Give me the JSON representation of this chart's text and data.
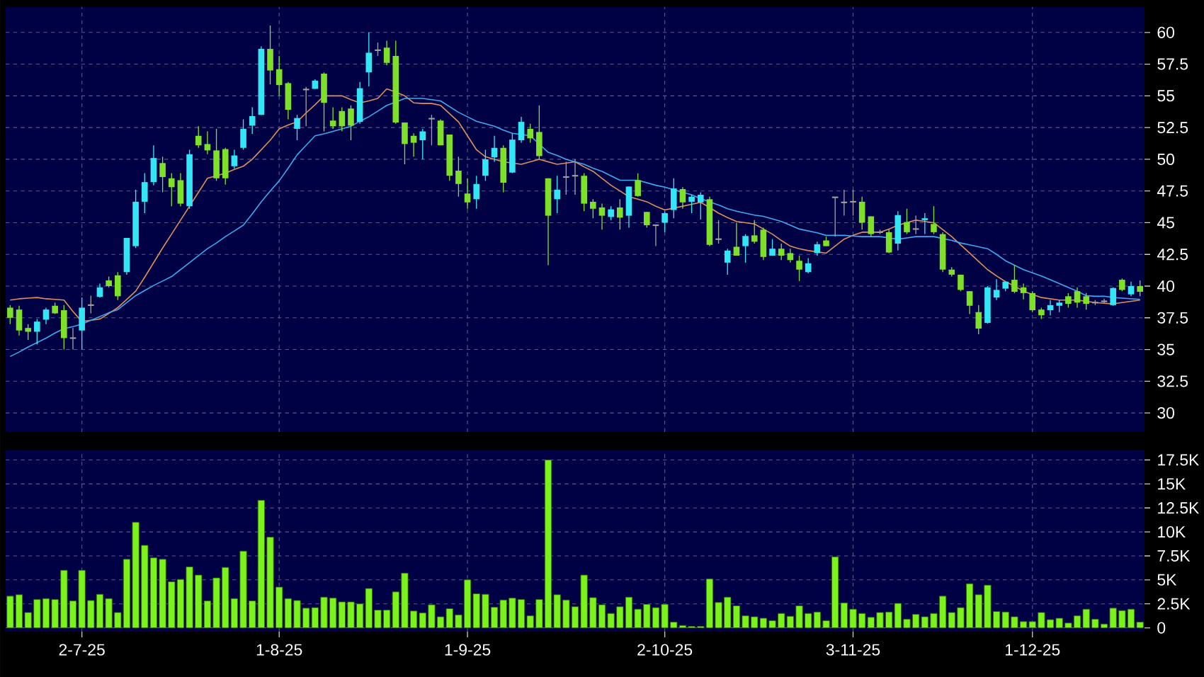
{
  "chart_data": [
    {
      "type": "candlestick",
      "categories": [
        null,
        null,
        null,
        null,
        null,
        null,
        null,
        null,
        null,
        null,
        null,
        null,
        null,
        null,
        null,
        null,
        null,
        null,
        null,
        null,
        null,
        null,
        null,
        null,
        null,
        null,
        null,
        null,
        null,
        null,
        null,
        null,
        null,
        null,
        null,
        null,
        null,
        null,
        null,
        null,
        null,
        null,
        null,
        null,
        null,
        null,
        null,
        null,
        null,
        null,
        null,
        null,
        null,
        null,
        null,
        null,
        null,
        null,
        null,
        null,
        null,
        null,
        null,
        null,
        null,
        null,
        null,
        null,
        null,
        null,
        null,
        null,
        null,
        null,
        null,
        null,
        null,
        null,
        null,
        null,
        null,
        null,
        null,
        null,
        null,
        null,
        null,
        null,
        null,
        null,
        null,
        null,
        null,
        null,
        null,
        null,
        null,
        null,
        null,
        null,
        null,
        null,
        null,
        null,
        null,
        null,
        null,
        null,
        null,
        null,
        null,
        null,
        null,
        null,
        null,
        null,
        null,
        null,
        null,
        null,
        null,
        null,
        null,
        null,
        null,
        null,
        null
      ],
      "ohlc": [
        [
          38.3,
          38.5,
          37.0,
          37.5
        ],
        [
          38.15,
          38.45,
          36.1,
          36.5
        ],
        [
          36.7,
          37.0,
          35.75,
          36.4
        ],
        [
          36.4,
          37.4,
          35.4,
          37.2
        ],
        [
          37.35,
          38.3,
          37.0,
          38.15
        ],
        [
          38.45,
          38.7,
          37.8,
          37.85
        ],
        [
          38.1,
          38.5,
          35.0,
          35.9
        ],
        [
          35.9,
          36.7,
          35.0,
          35.9
        ],
        [
          36.5,
          39.1,
          35.0,
          38.3
        ],
        [
          38.5,
          39.25,
          37.85,
          38.5
        ],
        [
          39.15,
          40.2,
          39.1,
          39.9
        ],
        [
          40.45,
          40.75,
          39.9,
          40.0
        ],
        [
          40.85,
          41.1,
          38.9,
          39.2
        ],
        [
          41.1,
          43.8,
          40.9,
          43.8
        ],
        [
          43.15,
          47.6,
          43.0,
          46.65
        ],
        [
          46.65,
          48.9,
          45.75,
          48.2
        ],
        [
          48.2,
          51.1,
          47.95,
          50.1
        ],
        [
          49.7,
          50.2,
          47.4,
          48.6
        ],
        [
          48.5,
          48.9,
          46.3,
          47.8
        ],
        [
          48.35,
          48.9,
          46.3,
          46.5
        ],
        [
          46.3,
          50.75,
          46.1,
          50.4
        ],
        [
          51.85,
          52.6,
          50.9,
          51.1
        ],
        [
          51.2,
          52.2,
          50.4,
          50.7
        ],
        [
          50.7,
          52.4,
          48.3,
          48.5
        ],
        [
          50.8,
          50.9,
          48.0,
          48.5
        ],
        [
          49.45,
          50.75,
          49.25,
          50.3
        ],
        [
          50.9,
          53.15,
          50.75,
          52.4
        ],
        [
          52.65,
          54.1,
          52.0,
          53.4
        ],
        [
          53.5,
          58.9,
          53.5,
          58.7
        ],
        [
          58.7,
          60.55,
          55.9,
          57.0
        ],
        [
          57.1,
          58.15,
          55.0,
          55.85
        ],
        [
          56.0,
          56.1,
          53.15,
          53.9
        ],
        [
          52.4,
          53.5,
          51.5,
          53.25
        ],
        [
          55.5,
          55.7,
          52.6,
          55.5
        ],
        [
          55.55,
          56.3,
          55.55,
          56.2
        ],
        [
          56.75,
          56.85,
          52.2,
          54.45
        ],
        [
          53.05,
          54.1,
          52.4,
          52.6
        ],
        [
          53.8,
          54.1,
          52.2,
          52.6
        ],
        [
          54.0,
          54.25,
          51.5,
          52.65
        ],
        [
          52.95,
          56.1,
          52.8,
          55.6
        ],
        [
          56.85,
          60.0,
          55.75,
          58.4
        ],
        [
          58.6,
          59.2,
          58.15,
          58.6
        ],
        [
          58.8,
          59.35,
          57.4,
          57.6
        ],
        [
          58.15,
          59.35,
          52.8,
          52.9
        ],
        [
          52.9,
          52.9,
          49.6,
          51.2
        ],
        [
          51.85,
          52.05,
          50.2,
          51.3
        ],
        [
          51.5,
          52.4,
          50.0,
          52.2
        ],
        [
          53.2,
          53.5,
          51.1,
          53.2
        ],
        [
          53.05,
          53.15,
          51.1,
          51.1
        ],
        [
          51.95,
          51.95,
          48.3,
          48.7
        ],
        [
          49.1,
          50.2,
          47.05,
          48.05
        ],
        [
          47.3,
          48.5,
          46.1,
          46.6
        ],
        [
          46.85,
          48.7,
          46.1,
          48.05
        ],
        [
          48.7,
          50.75,
          48.3,
          50.0
        ],
        [
          50.15,
          51.85,
          49.8,
          50.9
        ],
        [
          50.9,
          51.1,
          47.4,
          48.15
        ],
        [
          48.95,
          52.05,
          48.9,
          51.55
        ],
        [
          51.5,
          53.35,
          51.3,
          52.95
        ],
        [
          52.4,
          52.8,
          51.3,
          51.65
        ],
        [
          52.15,
          54.25,
          50.0,
          50.25
        ],
        [
          48.5,
          48.5,
          41.65,
          45.55
        ],
        [
          46.85,
          48.7,
          45.75,
          47.6
        ],
        [
          48.6,
          49.8,
          47.2,
          48.6
        ],
        [
          48.7,
          50.0,
          47.2,
          48.7
        ],
        [
          48.7,
          48.9,
          45.9,
          46.5
        ],
        [
          46.65,
          46.85,
          45.35,
          46.1
        ],
        [
          46.2,
          46.5,
          44.45,
          45.55
        ],
        [
          45.45,
          46.3,
          45.2,
          46.05
        ],
        [
          46.2,
          46.85,
          44.45,
          45.4
        ],
        [
          45.55,
          47.85,
          44.6,
          47.85
        ],
        [
          48.35,
          48.9,
          47.05,
          47.1
        ],
        [
          45.85,
          45.85,
          44.6,
          44.8
        ],
        [
          44.8,
          44.8,
          43.15,
          44.8
        ],
        [
          45.0,
          45.9,
          44.25,
          45.75
        ],
        [
          46.0,
          48.5,
          45.35,
          47.7
        ],
        [
          47.65,
          47.8,
          46.1,
          46.6
        ],
        [
          46.65,
          47.2,
          45.75,
          47.05
        ],
        [
          46.6,
          47.4,
          45.25,
          47.2
        ],
        [
          46.85,
          47.05,
          43.15,
          43.25
        ],
        [
          43.7,
          45.2,
          43.35,
          43.7
        ],
        [
          41.85,
          42.95,
          40.9,
          42.8
        ],
        [
          43.1,
          45.0,
          42.4,
          42.4
        ],
        [
          43.15,
          44.1,
          41.85,
          43.95
        ],
        [
          44.0,
          45.2,
          43.35,
          43.5
        ],
        [
          44.45,
          44.6,
          42.05,
          42.3
        ],
        [
          42.4,
          43.7,
          42.4,
          42.95
        ],
        [
          42.95,
          43.35,
          42.05,
          42.4
        ],
        [
          42.6,
          42.95,
          41.85,
          42.05
        ],
        [
          42.0,
          42.4,
          40.4,
          41.3
        ],
        [
          41.1,
          42.2,
          41.0,
          41.8
        ],
        [
          42.6,
          43.5,
          42.4,
          43.3
        ],
        [
          43.6,
          43.9,
          43.15,
          43.15
        ],
        [
          47.0,
          47.0,
          43.9,
          47.0
        ],
        [
          46.6,
          47.6,
          45.55,
          46.6
        ],
        [
          46.65,
          47.6,
          45.55,
          46.65
        ],
        [
          46.65,
          47.05,
          44.45,
          45.0
        ],
        [
          45.5,
          45.5,
          43.9,
          44.1
        ],
        [
          44.25,
          44.45,
          44.1,
          44.25
        ],
        [
          44.25,
          44.45,
          42.6,
          42.65
        ],
        [
          43.35,
          45.9,
          42.8,
          45.6
        ],
        [
          45.05,
          46.1,
          44.1,
          44.25
        ],
        [
          44.5,
          45.55,
          44.1,
          44.5
        ],
        [
          45.2,
          45.75,
          44.1,
          45.35
        ],
        [
          44.9,
          46.3,
          44.1,
          44.25
        ],
        [
          44.1,
          44.25,
          41.1,
          41.3
        ],
        [
          41.3,
          41.5,
          40.75,
          40.9
        ],
        [
          40.9,
          40.9,
          39.6,
          39.7
        ],
        [
          39.6,
          39.6,
          37.8,
          38.45
        ],
        [
          37.95,
          38.5,
          36.2,
          36.65
        ],
        [
          37.1,
          40.0,
          37.05,
          39.9
        ],
        [
          39.1,
          40.55,
          38.9,
          39.7
        ],
        [
          39.8,
          40.35,
          39.6,
          40.35
        ],
        [
          40.5,
          41.65,
          39.45,
          39.55
        ],
        [
          39.9,
          40.2,
          38.95,
          39.45
        ],
        [
          39.45,
          39.6,
          37.95,
          38.1
        ],
        [
          38.15,
          38.3,
          37.4,
          37.7
        ],
        [
          38.1,
          38.9,
          37.7,
          38.5
        ],
        [
          38.45,
          38.9,
          37.95,
          38.7
        ],
        [
          39.2,
          39.45,
          38.3,
          38.6
        ],
        [
          39.6,
          39.9,
          38.3,
          38.7
        ],
        [
          39.2,
          39.45,
          38.15,
          38.6
        ],
        [
          38.7,
          38.9,
          38.5,
          38.7
        ],
        [
          38.8,
          39.0,
          38.6,
          38.8
        ],
        [
          38.5,
          39.9,
          38.45,
          39.85
        ],
        [
          40.5,
          40.6,
          39.6,
          39.7
        ],
        [
          39.35,
          40.35,
          39.2,
          40.0
        ],
        [
          40.0,
          40.45,
          39.2,
          39.55
        ]
      ],
      "colors": [
        "#7fe02a",
        "#7fe02a",
        "#7fe02a",
        "#33e6f6",
        "#33e6f6",
        "#7fe02a",
        "#7fe02a",
        "#a0a0a0",
        "#33e6f6",
        "#a0a0a0",
        "#33e6f6",
        "#7fe02a",
        "#7fe02a",
        "#33e6f6",
        "#33e6f6",
        "#33e6f6",
        "#33e6f6",
        "#7fe02a",
        "#7fe02a",
        "#7fe02a",
        "#33e6f6",
        "#7fe02a",
        "#7fe02a",
        "#7fe02a",
        "#7fe02a",
        "#33e6f6",
        "#33e6f6",
        "#33e6f6",
        "#33e6f6",
        "#7fe02a",
        "#7fe02a",
        "#7fe02a",
        "#33e6f6",
        "#a0a0a0",
        "#33e6f6",
        "#7fe02a",
        "#7fe02a",
        "#7fe02a",
        "#7fe02a",
        "#33e6f6",
        "#33e6f6",
        "#a0a0a0",
        "#7fe02a",
        "#7fe02a",
        "#7fe02a",
        "#7fe02a",
        "#33e6f6",
        "#a0a0a0",
        "#7fe02a",
        "#7fe02a",
        "#7fe02a",
        "#7fe02a",
        "#33e6f6",
        "#33e6f6",
        "#33e6f6",
        "#7fe02a",
        "#33e6f6",
        "#33e6f6",
        "#7fe02a",
        "#7fe02a",
        "#7fe02a",
        "#33e6f6",
        "#a0a0a0",
        "#a0a0a0",
        "#7fe02a",
        "#7fe02a",
        "#7fe02a",
        "#33e6f6",
        "#7fe02a",
        "#33e6f6",
        "#7fe02a",
        "#7fe02a",
        "#a0a0a0",
        "#33e6f6",
        "#33e6f6",
        "#7fe02a",
        "#33e6f6",
        "#33e6f6",
        "#7fe02a",
        "#a0a0a0",
        "#33e6f6",
        "#7fe02a",
        "#33e6f6",
        "#7fe02a",
        "#7fe02a",
        "#33e6f6",
        "#7fe02a",
        "#7fe02a",
        "#7fe02a",
        "#33e6f6",
        "#33e6f6",
        "#7fe02a",
        "#a0a0a0",
        "#a0a0a0",
        "#a0a0a0",
        "#7fe02a",
        "#7fe02a",
        "#a0a0a0",
        "#7fe02a",
        "#33e6f6",
        "#7fe02a",
        "#a0a0a0",
        "#33e6f6",
        "#7fe02a",
        "#7fe02a",
        "#7fe02a",
        "#7fe02a",
        "#7fe02a",
        "#7fe02a",
        "#33e6f6",
        "#33e6f6",
        "#33e6f6",
        "#7fe02a",
        "#7fe02a",
        "#7fe02a",
        "#7fe02a",
        "#33e6f6",
        "#33e6f6",
        "#7fe02a",
        "#7fe02a",
        "#7fe02a",
        "#a0a0a0",
        "#a0a0a0",
        "#33e6f6",
        "#7fe02a",
        "#33e6f6",
        "#7fe02a"
      ],
      "series": [
        {
          "type": "line",
          "color": "#e0905a",
          "values": [
            38.9,
            39.0,
            39.05,
            39.1,
            39.0,
            38.95,
            38.9,
            38.0,
            37.2,
            37.3,
            37.4,
            37.85,
            38.3,
            38.95,
            39.6,
            40.7,
            41.85,
            43.0,
            44.1,
            45.2,
            46.3,
            47.4,
            48.5,
            48.7,
            48.9,
            49.2,
            49.45,
            50.0,
            50.75,
            51.5,
            52.4,
            52.7,
            52.95,
            53.65,
            54.3,
            55.0,
            55.0,
            55.0,
            54.7,
            54.45,
            54.6,
            54.8,
            55.55,
            55.3,
            55.0,
            54.45,
            54.4,
            54.4,
            54.25,
            53.6,
            52.95,
            51.85,
            50.75,
            50.2,
            50.0,
            49.8,
            49.7,
            49.6,
            49.8,
            50.0,
            49.8,
            49.6,
            49.7,
            49.8,
            49.4,
            49.05,
            48.5,
            47.95,
            47.5,
            47.05,
            46.85,
            46.65,
            46.3,
            46.0,
            46.15,
            46.3,
            46.45,
            46.6,
            46.2,
            45.75,
            45.4,
            45.1,
            45.0,
            44.9,
            44.5,
            44.1,
            43.6,
            43.15,
            42.95,
            42.8,
            42.7,
            42.6,
            43.15,
            43.7,
            44.0,
            44.25,
            44.25,
            44.25,
            44.5,
            44.8,
            45.0,
            45.2,
            45.1,
            45.0,
            44.45,
            43.9,
            43.25,
            42.6,
            41.95,
            41.3,
            40.8,
            40.35,
            40.0,
            39.6,
            39.35,
            39.1,
            39.0,
            38.9,
            38.9,
            38.9,
            38.8,
            38.7,
            38.65,
            38.6,
            38.7,
            38.8,
            38.9
          ]
        },
        {
          "type": "line",
          "color": "#40a8f0",
          "values": [
            34.45,
            34.8,
            35.2,
            35.55,
            35.9,
            36.3,
            36.65,
            36.8,
            37.0,
            37.3,
            37.6,
            37.9,
            38.15,
            38.7,
            39.25,
            39.65,
            40.05,
            40.4,
            40.75,
            41.3,
            41.85,
            42.4,
            42.95,
            43.4,
            43.9,
            44.35,
            44.8,
            45.7,
            46.65,
            47.5,
            48.3,
            49.3,
            50.35,
            51.1,
            51.85,
            52.0,
            52.2,
            52.4,
            52.6,
            53.0,
            53.35,
            53.8,
            54.25,
            54.5,
            54.8,
            54.8,
            54.8,
            54.7,
            54.6,
            54.15,
            53.7,
            53.35,
            53.0,
            52.8,
            52.6,
            52.3,
            52.05,
            51.95,
            51.85,
            51.2,
            50.55,
            50.3,
            50.0,
            49.8,
            49.6,
            49.3,
            49.05,
            48.7,
            48.35,
            48.35,
            48.35,
            48.15,
            47.95,
            47.8,
            47.6,
            47.4,
            47.2,
            46.9,
            46.65,
            46.4,
            46.1,
            45.9,
            45.75,
            45.6,
            45.5,
            45.3,
            45.1,
            44.8,
            44.5,
            44.35,
            44.2,
            44.0,
            44.0,
            44.0,
            43.95,
            43.9,
            43.9,
            43.9,
            43.8,
            43.7,
            43.8,
            43.9,
            43.9,
            43.9,
            43.75,
            43.6,
            43.4,
            43.25,
            43.1,
            42.95,
            42.5,
            42.0,
            41.65,
            41.3,
            41.05,
            40.8,
            40.5,
            40.2,
            39.9,
            39.6,
            39.25,
            39.2,
            39.2,
            39.1,
            39.05,
            39.0,
            38.95
          ]
        }
      ],
      "ylim": [
        28.5,
        62
      ],
      "yticks": [
        30,
        32.5,
        35,
        37.5,
        40,
        42.5,
        45,
        47.5,
        50,
        52.5,
        55,
        57.5,
        60
      ],
      "grid": true,
      "tick_labels": "y"
    },
    {
      "type": "bar",
      "categories": [
        null,
        null,
        null,
        null,
        null,
        null,
        null,
        null,
        "2-7-25",
        null,
        null,
        null,
        null,
        null,
        null,
        null,
        null,
        null,
        null,
        null,
        null,
        null,
        null,
        null,
        null,
        null,
        null,
        null,
        null,
        null,
        "1-8-25",
        null,
        null,
        null,
        null,
        null,
        null,
        null,
        null,
        null,
        null,
        null,
        null,
        null,
        null,
        null,
        null,
        null,
        null,
        null,
        null,
        "1-9-25",
        null,
        null,
        null,
        null,
        null,
        null,
        null,
        null,
        null,
        null,
        null,
        null,
        null,
        null,
        null,
        null,
        null,
        null,
        null,
        null,
        null,
        "2-10-25",
        null,
        null,
        null,
        null,
        null,
        null,
        null,
        null,
        null,
        null,
        null,
        null,
        null,
        null,
        null,
        null,
        null,
        null,
        null,
        null,
        "3-11-25",
        null,
        null,
        null,
        null,
        null,
        null,
        null,
        null,
        null,
        null,
        null,
        null,
        null,
        null,
        null,
        null,
        null,
        null,
        null,
        "1-12-25",
        null,
        null,
        null,
        null,
        null,
        null,
        null,
        null,
        null,
        null,
        null,
        null
      ],
      "values": [
        3300,
        3450,
        1600,
        2950,
        3050,
        2950,
        6000,
        2800,
        6000,
        2850,
        3500,
        3050,
        1600,
        7150,
        11000,
        8600,
        7300,
        7150,
        4800,
        5050,
        6350,
        5500,
        2800,
        5200,
        6300,
        3050,
        8000,
        2800,
        13300,
        9450,
        4250,
        3050,
        2850,
        2050,
        2100,
        3200,
        3100,
        2700,
        2700,
        2500,
        4100,
        1850,
        1850,
        3750,
        5700,
        1750,
        1550,
        2400,
        1150,
        2000,
        1350,
        5000,
        3550,
        3500,
        2150,
        2900,
        3100,
        2950,
        1250,
        2950,
        17500,
        3450,
        2900,
        2200,
        5500,
        3150,
        2400,
        1500,
        2200,
        3200,
        1950,
        2450,
        2100,
        2450,
        600,
        250,
        150,
        150,
        5100,
        2650,
        3200,
        2300,
        1250,
        1150,
        1000,
        750,
        1500,
        1200,
        2300,
        1500,
        1650,
        750,
        7400,
        2600,
        1950,
        1500,
        1100,
        1600,
        1650,
        2550,
        900,
        1400,
        1150,
        1500,
        3300,
        1600,
        2100,
        4600,
        3450,
        4450,
        1700,
        1650,
        1150,
        650,
        650,
        1600,
        850,
        1000,
        500,
        1250,
        1950,
        900,
        400,
        2050,
        1800,
        1950,
        600
      ],
      "color": "#7cf21c",
      "ylim": [
        -400,
        18500
      ],
      "yticks": [
        0,
        {
          "value": 2500,
          "label": "2.5K"
        },
        {
          "value": 5000,
          "label": "5K"
        },
        {
          "value": 7500,
          "label": "7.5K"
        },
        {
          "value": 10000,
          "label": "10K"
        },
        {
          "value": 12500,
          "label": "12.5K"
        },
        {
          "value": 15000,
          "label": "15K"
        },
        {
          "value": 17500,
          "label": "17.5K"
        }
      ],
      "grid": true
    }
  ]
}
